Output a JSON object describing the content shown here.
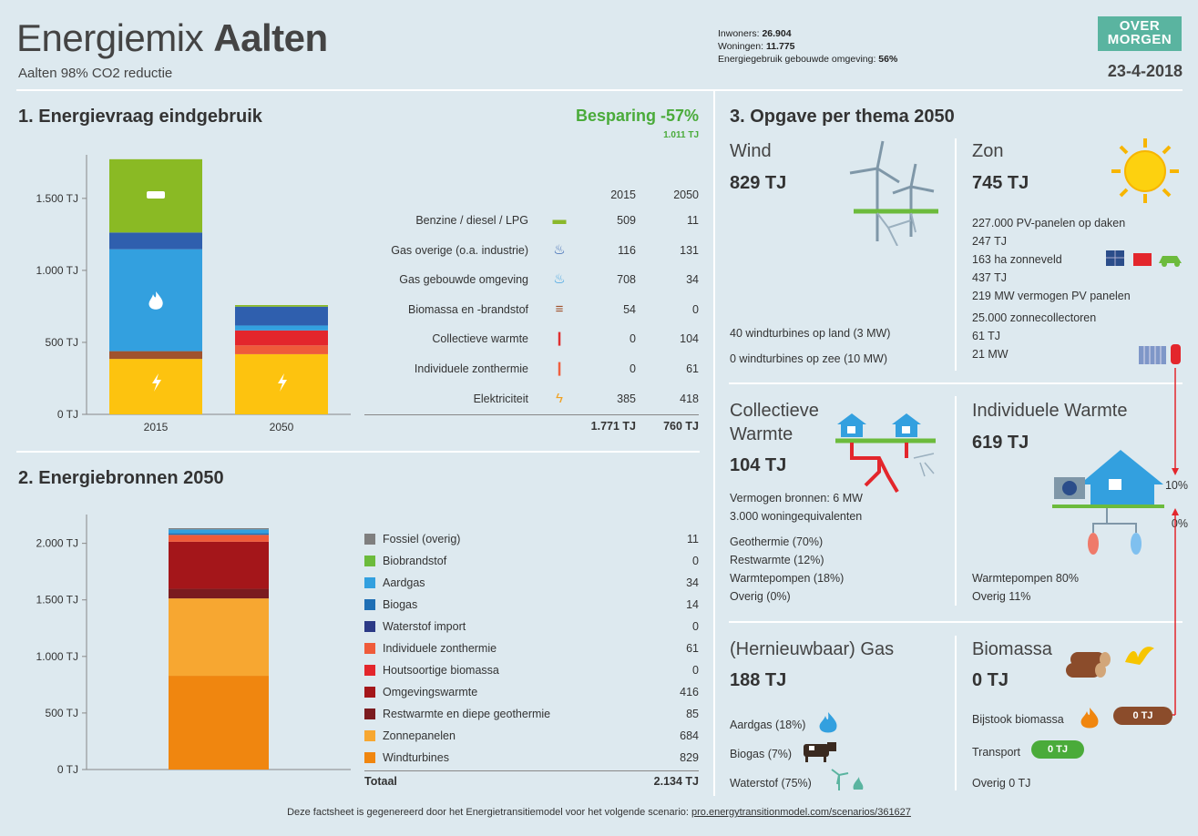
{
  "header": {
    "title_prefix": "Energiemix",
    "title_name": "Aalten",
    "subtitle": "Aalten 98% CO2 reductie",
    "inwoners_label": "Inwoners:",
    "inwoners_value": "26.904",
    "woningen_label": "Woningen:",
    "woningen_value": "11.775",
    "energiegebruik_label": "Energiegebruik gebouwde omgeving:",
    "energiegebruik_value": "56%",
    "logo_line1": "OVER",
    "logo_line2": "MORGEN",
    "date": "23-4-2018"
  },
  "section1": {
    "title": "1. Energievraag eindgebruik",
    "besparing": "Besparing -57%",
    "besparing_tj": "1.011 TJ",
    "col_2015": "2015",
    "col_2050": "2050",
    "rows": [
      {
        "label": "Benzine / diesel / LPG",
        "v2015": "509",
        "v2050": "11",
        "icon": "car-icon",
        "color": "#8ab82a"
      },
      {
        "label": "Gas overige (o.a. industrie)",
        "v2015": "116",
        "v2050": "131",
        "icon": "flame-icon",
        "color": "#2f5fae"
      },
      {
        "label": "Gas gebouwde omgeving",
        "v2015": "708",
        "v2050": "34",
        "icon": "flame-icon",
        "color": "#3ba0e0"
      },
      {
        "label": "Biomassa en -brandstof",
        "v2015": "54",
        "v2050": "0",
        "icon": "logs-icon",
        "color": "#a0522d"
      },
      {
        "label": "Collectieve warmte",
        "v2015": "0",
        "v2050": "104",
        "icon": "thermometer-icon",
        "color": "#e03030"
      },
      {
        "label": "Individuele zonthermie",
        "v2015": "0",
        "v2050": "61",
        "icon": "thermometer-icon",
        "color": "#f06040"
      },
      {
        "label": "Elektriciteit",
        "v2015": "385",
        "v2050": "418",
        "icon": "lightning-icon",
        "color": "#f0a020"
      }
    ],
    "total_2015": "1.771 TJ",
    "total_2050": "760 TJ"
  },
  "chart1": {
    "type": "bar",
    "categories": [
      "2015",
      "2050"
    ],
    "ylim": [
      0,
      1771
    ],
    "yticks": [
      "0 TJ",
      "500 TJ",
      "1.000 TJ",
      "1.500 TJ"
    ],
    "series": [
      {
        "name": "Elektriciteit",
        "color": "#fdc30f",
        "values": [
          385,
          418
        ]
      },
      {
        "name": "Individuele zonthermie",
        "color": "#ef5b3a",
        "values": [
          0,
          61
        ]
      },
      {
        "name": "Collectieve warmte",
        "color": "#e3262c",
        "values": [
          0,
          104
        ]
      },
      {
        "name": "Biomassa en -brandstof",
        "color": "#a0522d",
        "values": [
          54,
          0
        ]
      },
      {
        "name": "Gas gebouwde omgeving",
        "color": "#33a0df",
        "values": [
          708,
          34
        ]
      },
      {
        "name": "Gas overige (o.a. industrie)",
        "color": "#2f5fae",
        "values": [
          116,
          131
        ]
      },
      {
        "name": "Benzine / diesel / LPG",
        "color": "#8aba24",
        "values": [
          509,
          11
        ]
      }
    ]
  },
  "section2": {
    "title": "2. Energiebronnen 2050",
    "legend": [
      {
        "label": "Fossiel (overig)",
        "value": "11",
        "color": "#7f7f7f"
      },
      {
        "label": "Biobrandstof",
        "value": "0",
        "color": "#6cbb3c"
      },
      {
        "label": "Aardgas",
        "value": "34",
        "color": "#33a0df"
      },
      {
        "label": "Biogas",
        "value": "14",
        "color": "#1f6fb5"
      },
      {
        "label": "Waterstof import",
        "value": "0",
        "color": "#2b3a86"
      },
      {
        "label": "Individuele zonthermie",
        "value": "61",
        "color": "#ef5b3a"
      },
      {
        "label": "Houtsoortige biomassa",
        "value": "0",
        "color": "#e3262c"
      },
      {
        "label": "Omgevingswarmte",
        "value": "416",
        "color": "#a4161a"
      },
      {
        "label": "Restwarmte en diepe geothermie",
        "value": "85",
        "color": "#7b1b1f"
      },
      {
        "label": "Zonnepanelen",
        "value": "684",
        "color": "#f7a731"
      },
      {
        "label": "Windturbines",
        "value": "829",
        "color": "#f0860f"
      }
    ],
    "total_label": "Totaal",
    "total_value": "2.134 TJ"
  },
  "chart2": {
    "type": "bar",
    "ylim": [
      0,
      2134
    ],
    "yticks": [
      "0 TJ",
      "500 TJ",
      "1.000 TJ",
      "1.500 TJ",
      "2.000 TJ"
    ],
    "series_values": [
      829,
      684,
      85,
      416,
      0,
      61,
      0,
      14,
      34,
      0,
      11
    ]
  },
  "section3": {
    "title": "3. Opgave per thema 2050",
    "wind": {
      "title": "Wind",
      "value": "829 TJ",
      "line1": "40 windturbines op land (3 MW)",
      "line2": "0 windturbines op zee (10 MW)"
    },
    "zon": {
      "title": "Zon",
      "value": "745 TJ",
      "lines": [
        "227.000 PV-panelen op daken",
        "247 TJ",
        "163 ha zonneveld",
        "437 TJ",
        "219 MW vermogen PV panelen",
        "25.000 zonnecollectoren",
        "61 TJ",
        "21 MW"
      ]
    },
    "collectief": {
      "title1": "Collectieve",
      "title2": "Warmte",
      "value": "104 TJ",
      "lines1": [
        "Vermogen bronnen: 6 MW",
        "3.000 woningequivalenten"
      ],
      "lines2": [
        "Geothermie (70%)",
        "Restwarmte (12%)",
        "Warmtepompen (18%)",
        "Overig (0%)"
      ]
    },
    "individueel": {
      "title": "Individuele Warmte",
      "value": "619 TJ",
      "pct1": "10%",
      "pct2": "0%",
      "lines": [
        "Warmtepompen 80%",
        "Overig 11%"
      ]
    },
    "gas": {
      "title": "(Hernieuwbaar) Gas",
      "value": "188 TJ",
      "lines": [
        "Aardgas (18%)",
        "Biogas (7%)",
        "Waterstof (75%)"
      ]
    },
    "biomassa": {
      "title": "Biomassa",
      "value": "0 TJ",
      "bijstook": "Bijstook biomassa",
      "bijstook_pill": "0 TJ",
      "transport": "Transport",
      "transport_pill": "0 TJ",
      "overig": "Overig 0 TJ"
    }
  },
  "footer": {
    "text": "Deze factsheet is gegenereerd door het Energietransitiemodel voor het volgende scenario: ",
    "link": "pro.energytransitionmodel.com/scenarios/361627"
  }
}
